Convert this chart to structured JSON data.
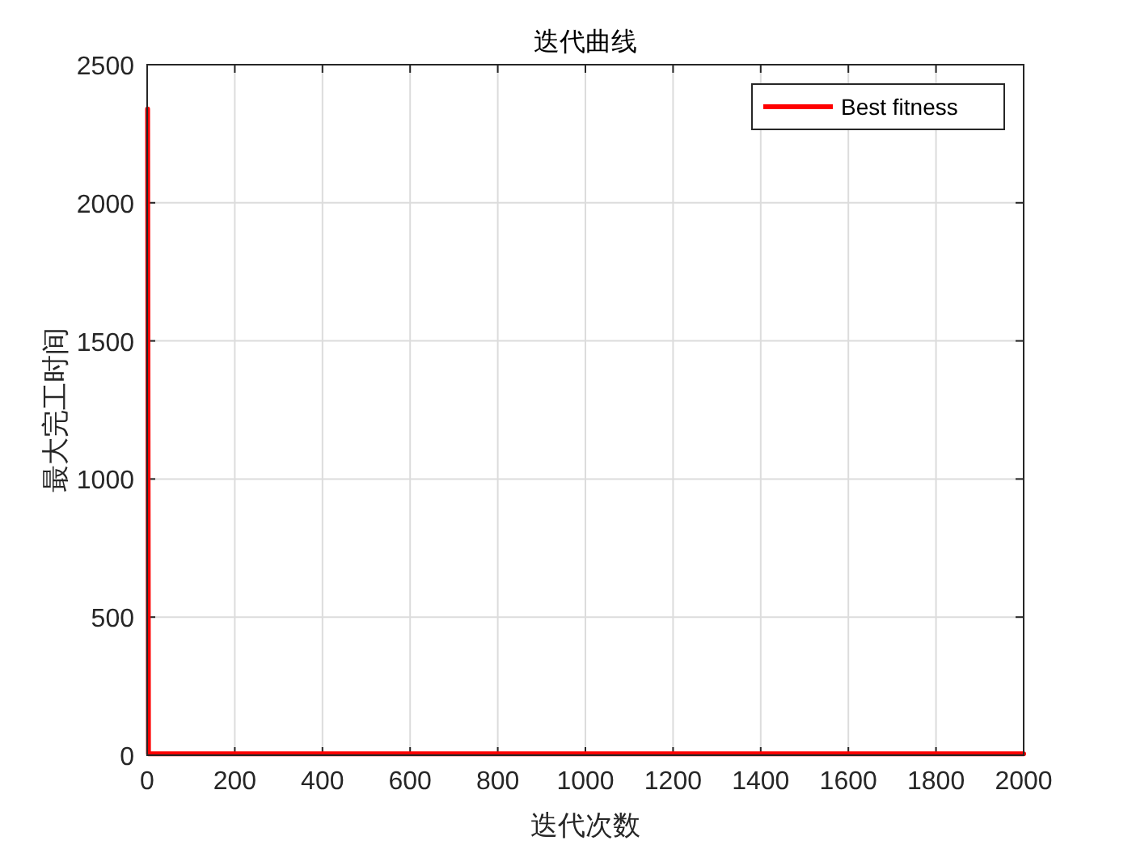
{
  "chart_data": {
    "type": "line",
    "title": "迭代曲线",
    "xlabel": "迭代次数",
    "ylabel": "最大完工时间",
    "x": [
      1,
      3,
      2000
    ],
    "series": [
      {
        "name": "Best fitness",
        "color": "#ff0000",
        "values": [
          2340,
          5,
          5
        ]
      }
    ],
    "xlim": [
      0,
      2000
    ],
    "xticks": [
      0,
      200,
      400,
      600,
      800,
      1000,
      1200,
      1400,
      1600,
      1800,
      2000
    ],
    "ylim": [
      0,
      2500
    ],
    "yticks": [
      0,
      500,
      1000,
      1500,
      2000,
      2500
    ],
    "grid": true,
    "legend": "top right",
    "line_style": "solid",
    "marker": "none"
  }
}
